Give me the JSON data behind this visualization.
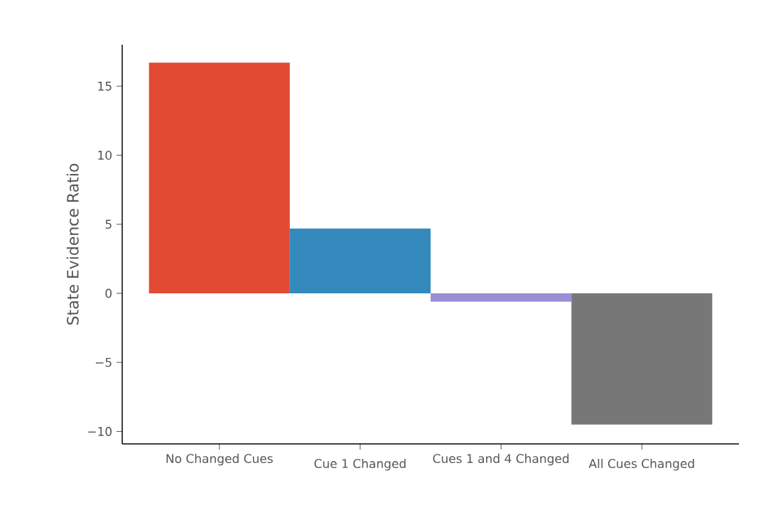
{
  "chart_data": {
    "type": "bar",
    "ylabel": "State Evidence Ratio",
    "categories": [
      "No Changed Cues",
      "Cue 1 Changed",
      "Cues 1 and 4 Changed",
      "All Cues Changed"
    ],
    "values": [
      16.7,
      4.7,
      -0.6,
      -9.5
    ],
    "colors": [
      "#e24a33",
      "#348abd",
      "#988ed5",
      "#777777"
    ],
    "ylim": [
      -10.9,
      18
    ],
    "yticks": [
      {
        "value": -10,
        "label": "−10"
      },
      {
        "value": -5,
        "label": "−5"
      },
      0,
      5,
      10,
      15
    ],
    "grid": false
  }
}
